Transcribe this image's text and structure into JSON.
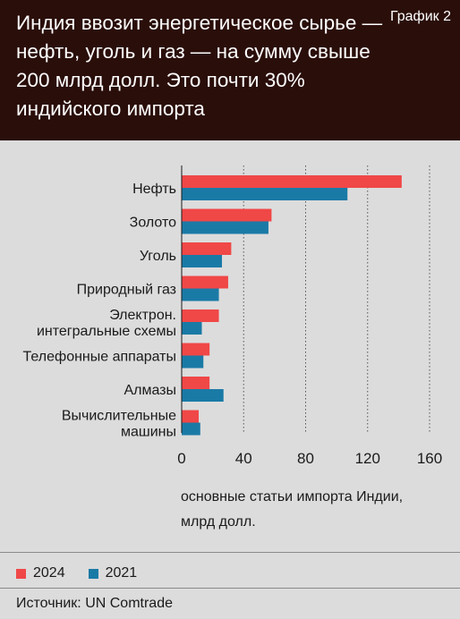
{
  "header": {
    "title": "Индия ввозит энергетическое сырье — нефть, уголь и газ — на сумму свыше 200 млрд долл. Это почти 30% индийского импорта",
    "badge": "График 2"
  },
  "colors": {
    "s2024": "#f04747",
    "s2021": "#1a7aa6"
  },
  "chart_data": {
    "type": "bar",
    "orientation": "horizontal",
    "categories": [
      [
        "Нефть"
      ],
      [
        "Золото"
      ],
      [
        "Уголь"
      ],
      [
        "Природный газ"
      ],
      [
        "Электрон.",
        "интегральные схемы"
      ],
      [
        "Телефонные аппараты"
      ],
      [
        "Алмазы"
      ],
      [
        "Вычислительные",
        "машины"
      ]
    ],
    "series": [
      {
        "name": "2024",
        "values": [
          142,
          58,
          32,
          30,
          24,
          18,
          18,
          11
        ]
      },
      {
        "name": "2021",
        "values": [
          107,
          56,
          26,
          24,
          13,
          14,
          27,
          12
        ]
      }
    ],
    "xlim": [
      0,
      160
    ],
    "xticks": [
      "0",
      "40",
      "80",
      "120",
      "160"
    ],
    "xlabel": "основные статьи импорта Индии, млрд долл.",
    "legend_position": "bottom",
    "grid": "vertical"
  },
  "axis_note": {
    "line1": "основные статьи импорта Индии,",
    "line2": "млрд долл."
  },
  "legend": {
    "item1": "2024",
    "item2": "2021"
  },
  "source": "Источник: UN Comtrade"
}
